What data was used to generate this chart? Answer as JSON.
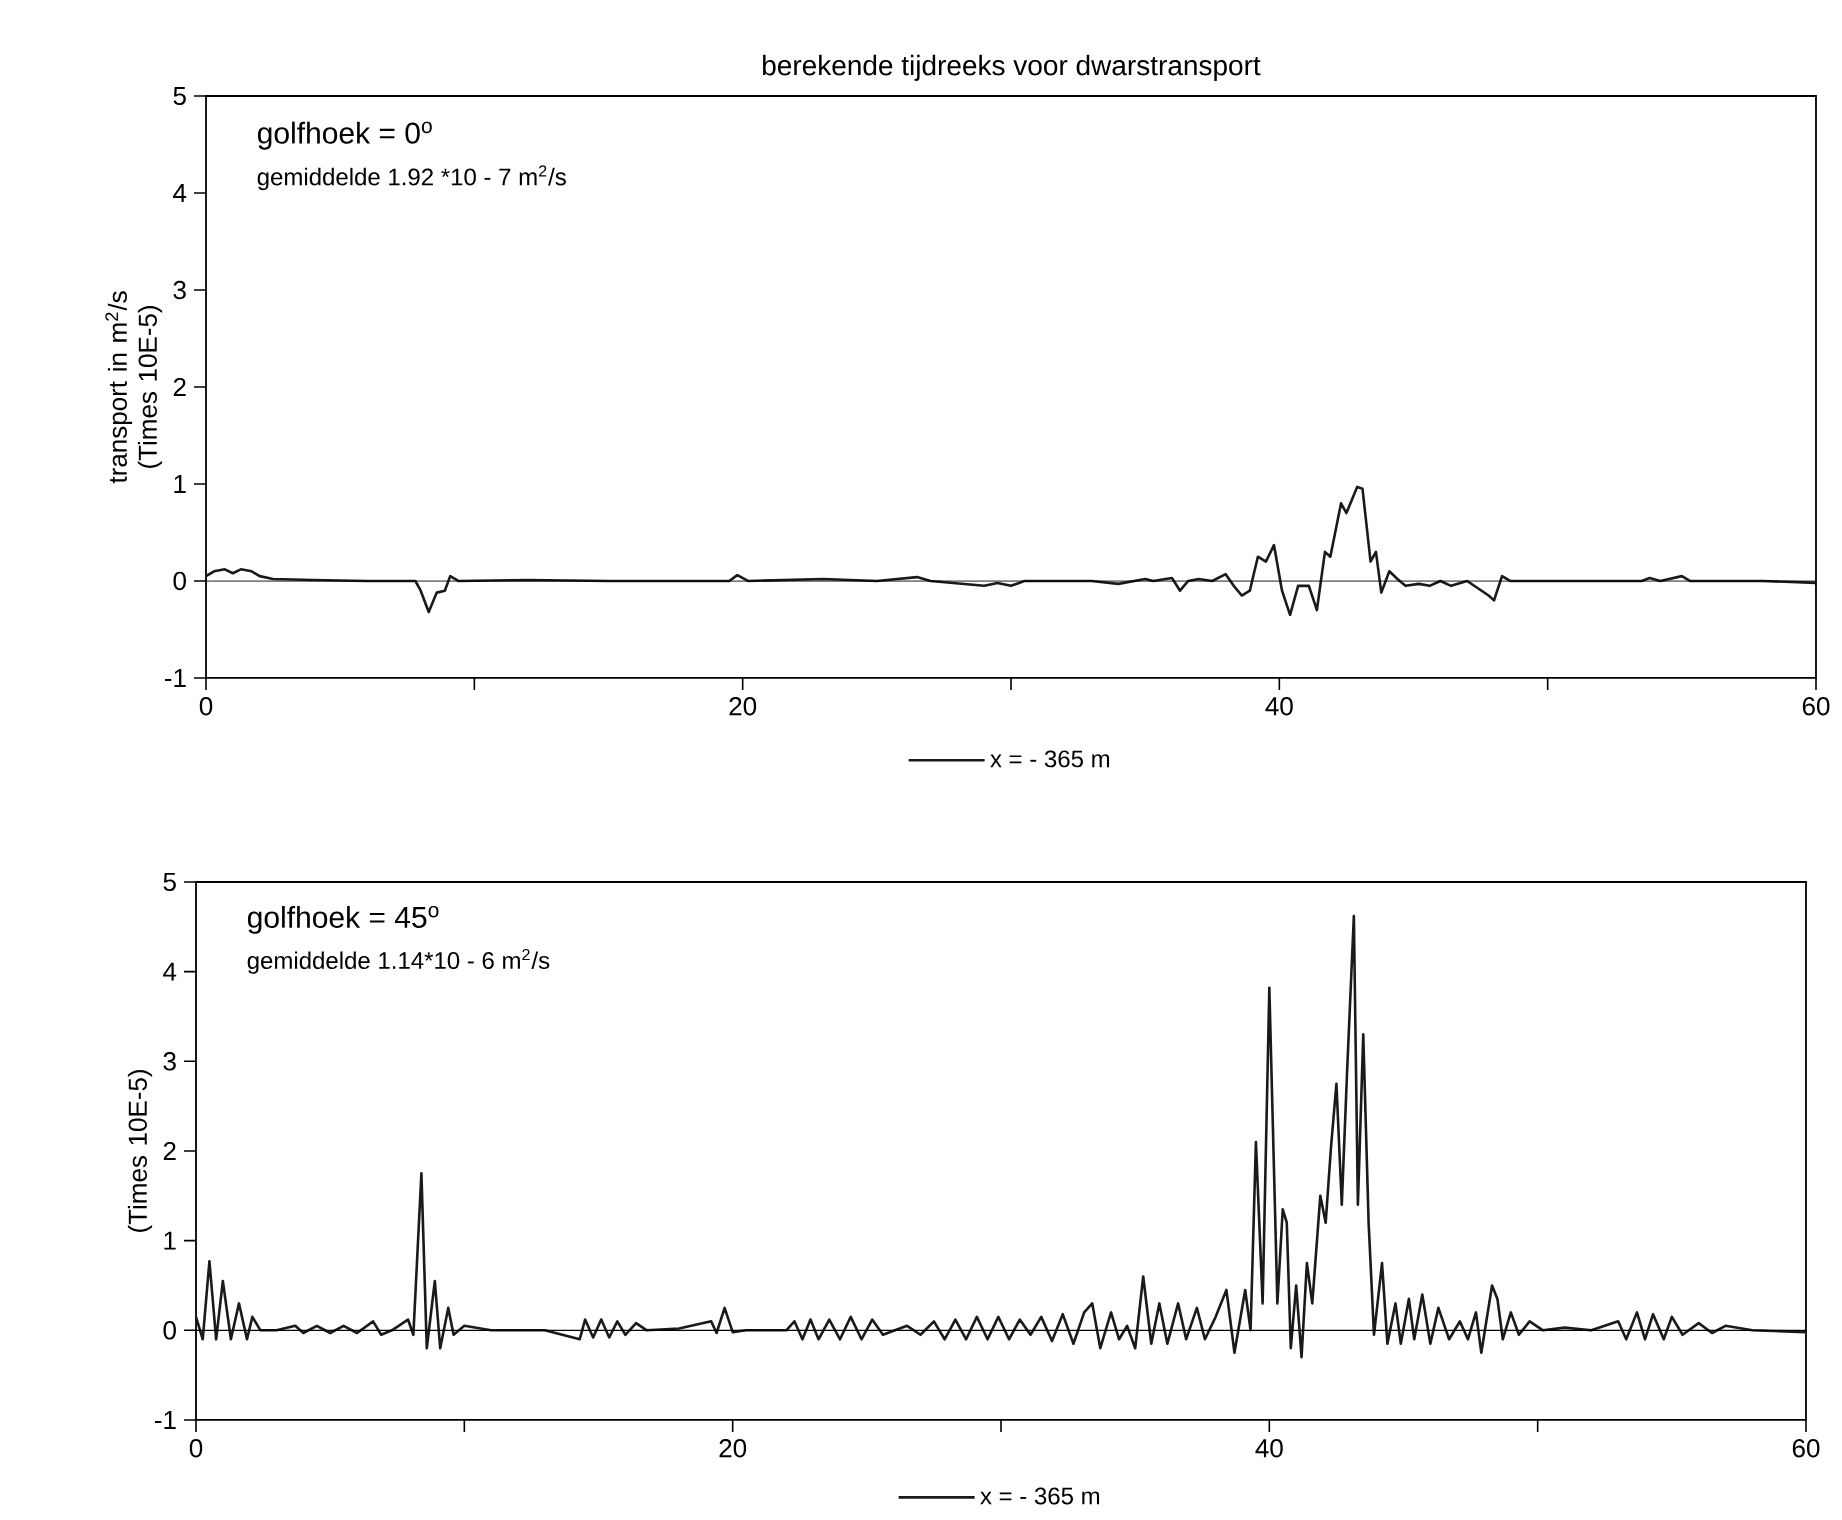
{
  "chart_data": [
    {
      "type": "line",
      "title": "berekende tijdreeks voor dwarstransport",
      "ylabel": "transport in m$^{2}$/s (Times 10E-5)",
      "annotations": [
        "golfhoek = 0$^{o}$",
        "gemiddelde 1.92 *10 - 7 m$^{2}$/s"
      ],
      "xlim": [
        0,
        60
      ],
      "ylim": [
        -1,
        5
      ],
      "xticks": [
        0,
        {
          "value": 10,
          "label": null
        },
        20,
        {
          "value": 30,
          "label": null
        },
        40,
        {
          "value": 50,
          "label": null
        },
        60
      ],
      "yticks": [
        -1,
        0,
        1,
        2,
        3,
        4,
        5
      ],
      "legend": "bottom",
      "line_style": "solid",
      "ref_lines": [
        {
          "axis": "y",
          "value": 0,
          "label": null
        }
      ],
      "series": [
        {
          "name": "x = - 365 m",
          "color": "#1a1a1a",
          "x": [
            0,
            0.3,
            0.7,
            1.0,
            1.3,
            1.7,
            2.0,
            2.5,
            4,
            6,
            7.8,
            8.0,
            8.3,
            8.6,
            8.9,
            9.1,
            9.4,
            12,
            15,
            19.5,
            19.8,
            20.2,
            23,
            25,
            26.5,
            27,
            29,
            29.5,
            30,
            30.5,
            33,
            34,
            35,
            35.3,
            36,
            36.3,
            36.6,
            37,
            37.5,
            38,
            38.3,
            38.6,
            38.9,
            39.2,
            39.5,
            39.8,
            40.1,
            40.4,
            40.7,
            41.1,
            41.4,
            41.7,
            41.9,
            42.3,
            42.5,
            42.9,
            43.1,
            43.4,
            43.6,
            43.8,
            44.1,
            44.4,
            44.7,
            45.2,
            45.6,
            46,
            46.4,
            47,
            47.8,
            48.0,
            48.3,
            48.6,
            50,
            53.5,
            53.8,
            54.2,
            55,
            55.3,
            58,
            60
          ],
          "values": [
            0.05,
            0.1,
            0.12,
            0.08,
            0.12,
            0.1,
            0.05,
            0.02,
            0.01,
            0.0,
            0.0,
            -0.1,
            -0.32,
            -0.12,
            -0.1,
            0.05,
            0.0,
            0.01,
            0.0,
            0.0,
            0.06,
            0.0,
            0.02,
            0.0,
            0.04,
            0.0,
            -0.05,
            -0.02,
            -0.05,
            0.0,
            0.0,
            -0.03,
            0.02,
            0.0,
            0.03,
            -0.1,
            0.0,
            0.02,
            0.0,
            0.07,
            -0.05,
            -0.15,
            -0.1,
            0.25,
            0.2,
            0.37,
            -0.1,
            -0.35,
            -0.05,
            -0.05,
            -0.3,
            0.3,
            0.25,
            0.8,
            0.7,
            0.97,
            0.95,
            0.2,
            0.3,
            -0.12,
            0.1,
            0.02,
            -0.05,
            -0.03,
            -0.05,
            0.0,
            -0.05,
            0.0,
            -0.15,
            -0.2,
            0.05,
            0.0,
            0.0,
            0.0,
            0.03,
            0.0,
            0.05,
            0.0,
            0.0,
            -0.02
          ]
        }
      ]
    },
    {
      "type": "line",
      "ylabel": "(Times 10E-5)",
      "annotations": [
        "golfhoek = 45$^{o}$",
        "gemiddelde 1.14*10 - 6 m$^{2}$/s"
      ],
      "xlim": [
        0,
        60
      ],
      "ylim": [
        -1,
        5
      ],
      "xticks": [
        0,
        {
          "value": 10,
          "label": null
        },
        20,
        {
          "value": 30,
          "label": null
        },
        40,
        {
          "value": 50,
          "label": null
        },
        60
      ],
      "yticks": [
        -1,
        0,
        1,
        2,
        3,
        4,
        5
      ],
      "legend": "bottom",
      "line_style": "solid",
      "ref_lines": [
        {
          "axis": "y",
          "value": 0,
          "label": null
        }
      ],
      "series": [
        {
          "name": "x = - 365 m",
          "color": "#1a1a1a",
          "x": [
            0,
            0.25,
            0.5,
            0.75,
            1.0,
            1.3,
            1.6,
            1.9,
            2.1,
            2.4,
            3,
            3.7,
            4,
            4.5,
            5,
            5.5,
            6,
            6.6,
            6.9,
            7.3,
            7.9,
            8.1,
            8.4,
            8.6,
            8.9,
            9.1,
            9.4,
            9.6,
            10,
            11,
            13,
            14.3,
            14.5,
            14.8,
            15.1,
            15.4,
            15.7,
            16,
            16.4,
            16.8,
            18,
            19.2,
            19.4,
            19.7,
            20,
            20.5,
            22,
            22.3,
            22.6,
            22.9,
            23.2,
            23.6,
            24,
            24.4,
            24.8,
            25.2,
            25.6,
            26.5,
            27,
            27.5,
            27.9,
            28.3,
            28.7,
            29.1,
            29.5,
            29.9,
            30.3,
            30.7,
            31.1,
            31.5,
            31.9,
            32.3,
            32.7,
            33.1,
            33.4,
            33.7,
            34.1,
            34.4,
            34.7,
            35.0,
            35.3,
            35.6,
            35.9,
            36.2,
            36.6,
            36.9,
            37.3,
            37.6,
            38.0,
            38.4,
            38.7,
            39.1,
            39.3,
            39.5,
            39.75,
            40.0,
            40.3,
            40.5,
            40.65,
            40.8,
            41.0,
            41.2,
            41.4,
            41.6,
            41.9,
            42.1,
            42.3,
            42.5,
            42.7,
            42.9,
            43.15,
            43.3,
            43.5,
            43.7,
            43.9,
            44.2,
            44.4,
            44.7,
            44.9,
            45.2,
            45.4,
            45.7,
            46.0,
            46.3,
            46.7,
            47.1,
            47.4,
            47.7,
            47.9,
            48.3,
            48.5,
            48.7,
            49.0,
            49.3,
            49.7,
            50.2,
            51,
            52,
            53.0,
            53.3,
            53.7,
            54.0,
            54.3,
            54.7,
            55.0,
            55.4,
            56,
            56.5,
            57,
            58,
            60
          ],
          "values": [
            0.15,
            -0.1,
            0.77,
            -0.1,
            0.55,
            -0.1,
            0.3,
            -0.1,
            0.15,
            0.0,
            0.0,
            0.05,
            -0.03,
            0.05,
            -0.03,
            0.05,
            -0.03,
            0.1,
            -0.05,
            0.0,
            0.12,
            -0.05,
            1.75,
            -0.2,
            0.55,
            -0.2,
            0.25,
            -0.05,
            0.05,
            0.0,
            0.0,
            -0.1,
            0.12,
            -0.08,
            0.12,
            -0.08,
            0.1,
            -0.05,
            0.08,
            0.0,
            0.02,
            0.1,
            -0.03,
            0.25,
            -0.02,
            0.0,
            0.0,
            0.1,
            -0.1,
            0.12,
            -0.1,
            0.12,
            -0.1,
            0.15,
            -0.1,
            0.12,
            -0.05,
            0.05,
            -0.05,
            0.1,
            -0.1,
            0.12,
            -0.1,
            0.15,
            -0.1,
            0.15,
            -0.1,
            0.12,
            -0.05,
            0.15,
            -0.12,
            0.18,
            -0.15,
            0.2,
            0.3,
            -0.2,
            0.2,
            -0.1,
            0.05,
            -0.2,
            0.6,
            -0.15,
            0.3,
            -0.15,
            0.3,
            -0.1,
            0.25,
            -0.1,
            0.15,
            0.45,
            -0.25,
            0.45,
            0.0,
            2.1,
            0.3,
            3.82,
            0.3,
            1.35,
            1.2,
            -0.2,
            0.5,
            -0.3,
            0.75,
            0.3,
            1.5,
            1.2,
            2.05,
            2.75,
            1.4,
            2.9,
            4.62,
            1.4,
            3.3,
            1.2,
            -0.05,
            0.75,
            -0.15,
            0.3,
            -0.15,
            0.35,
            -0.1,
            0.4,
            -0.15,
            0.25,
            -0.1,
            0.1,
            -0.1,
            0.2,
            -0.25,
            0.5,
            0.35,
            -0.1,
            0.2,
            -0.05,
            0.1,
            0.0,
            0.03,
            0.0,
            0.1,
            -0.1,
            0.2,
            -0.1,
            0.18,
            -0.1,
            0.15,
            -0.05,
            0.08,
            -0.03,
            0.05,
            0.0,
            -0.02
          ]
        }
      ]
    }
  ]
}
